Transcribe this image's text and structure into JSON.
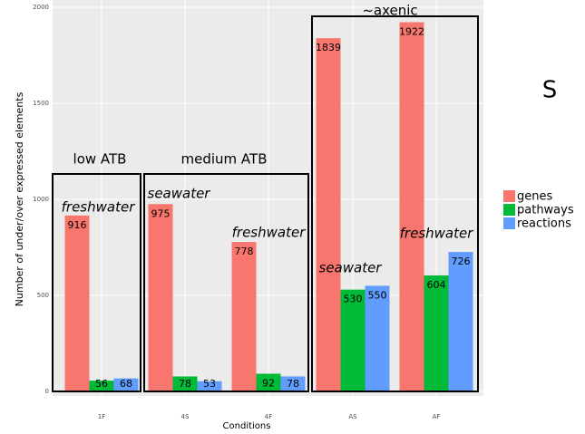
{
  "chart_data": {
    "type": "bar",
    "x_label": "Conditions",
    "y_label": "Number of under/over expressed elements",
    "categories": [
      "1F",
      "4S",
      "4F",
      "AS",
      "AF"
    ],
    "series": [
      {
        "name": "genes",
        "color": "#f8766d",
        "values": [
          916,
          975,
          778,
          1839,
          1922
        ]
      },
      {
        "name": "pathways",
        "color": "#00ba38",
        "values": [
          56,
          78,
          92,
          530,
          604
        ]
      },
      {
        "name": "reactions",
        "color": "#619cff",
        "values": [
          68,
          53,
          78,
          550,
          726
        ]
      }
    ],
    "ylim": [
      0,
      2000
    ],
    "yticks": [
      0,
      500,
      1000,
      1500,
      2000
    ],
    "grid": true,
    "annotations": [
      "low ATB",
      "medium ATB",
      "~axenic",
      "freshwater",
      "seawater",
      "freshwater",
      "seawater",
      "freshwater",
      "S"
    ]
  }
}
